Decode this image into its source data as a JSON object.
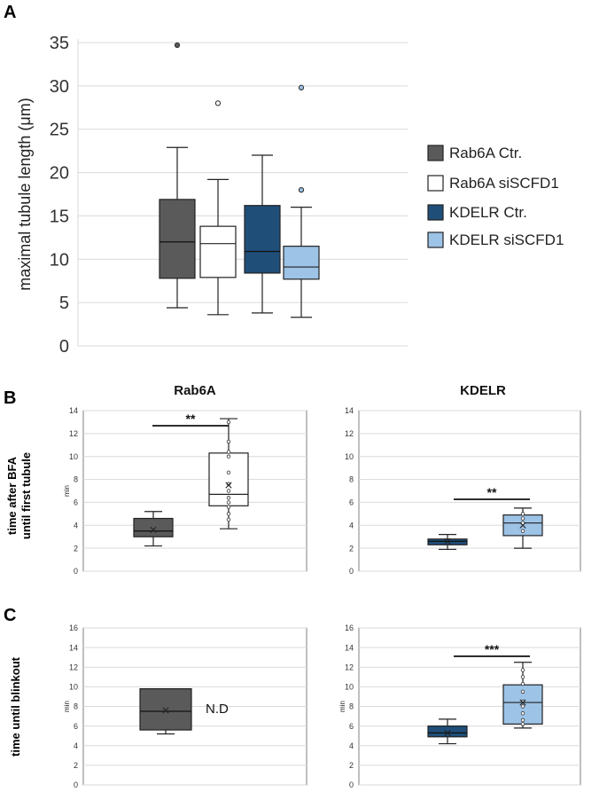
{
  "panel_labels": {
    "a": "A",
    "b": "B",
    "c": "C"
  },
  "colors": {
    "rab6a_ctr": "#5a5a5a",
    "rab6a_si": "#ffffff",
    "kdelr_ctr": "#1f4e79",
    "kdelr_si": "#9dc3e6",
    "grid": "#d9d9d9",
    "frame": "#7f7f7f",
    "stroke": "#222222"
  },
  "chart_data": [
    {
      "id": "A",
      "type": "box",
      "title": "",
      "ylabel": "maximal tubule length (μm)",
      "xlabel": "",
      "ylim": [
        0,
        35
      ],
      "yticks": [
        0,
        5,
        10,
        15,
        20,
        25,
        30,
        35
      ],
      "grid": true,
      "legend_position": "right",
      "series": [
        {
          "name": "Rab6A Ctr.",
          "color_key": "rab6a_ctr",
          "min": 4.4,
          "q1": 7.8,
          "median": 12.0,
          "q3": 16.9,
          "max": 22.9,
          "outliers": [
            34.7
          ]
        },
        {
          "name": "Rab6A siSCFD1",
          "color_key": "rab6a_si",
          "min": 3.6,
          "q1": 7.9,
          "median": 11.8,
          "q3": 13.8,
          "max": 19.2,
          "outliers": [
            28.0
          ]
        },
        {
          "name": "KDELR Ctr.",
          "color_key": "kdelr_ctr",
          "min": 3.8,
          "q1": 8.4,
          "median": 10.9,
          "q3": 16.2,
          "max": 22.0,
          "outliers": []
        },
        {
          "name": "KDELR siSCFD1",
          "color_key": "kdelr_si",
          "min": 3.3,
          "q1": 7.7,
          "median": 9.1,
          "q3": 11.5,
          "max": 16.0,
          "outliers": [
            18.0,
            29.8
          ]
        }
      ]
    },
    {
      "id": "B1",
      "type": "box",
      "title": "Rab6A",
      "ylabel": "min",
      "ylim": [
        0,
        14
      ],
      "yticks": [
        0,
        2,
        4,
        6,
        8,
        10,
        12,
        14
      ],
      "grid": true,
      "significance": "**",
      "series": [
        {
          "name": "Rab6A Ctr.",
          "color_key": "rab6a_ctr",
          "min": 2.2,
          "q1": 3.0,
          "median": 3.5,
          "q3": 4.6,
          "max": 5.2,
          "mean": 3.6,
          "points": []
        },
        {
          "name": "Rab6A siSCFD1",
          "color_key": "rab6a_si",
          "min": 3.7,
          "q1": 5.7,
          "median": 6.7,
          "q3": 10.3,
          "max": 13.3,
          "mean": 7.5,
          "points": [
            4.5,
            5.0,
            5.6,
            6.0,
            6.4,
            7.0,
            7.6,
            8.6,
            10.0,
            10.4,
            11.3,
            13.0
          ]
        }
      ]
    },
    {
      "id": "B2",
      "type": "box",
      "title": "KDELR",
      "ylabel": "",
      "ylim": [
        0,
        14
      ],
      "yticks": [
        0,
        2,
        4,
        6,
        8,
        10,
        12,
        14
      ],
      "grid": true,
      "significance": "**",
      "series": [
        {
          "name": "KDELR Ctr.",
          "color_key": "kdelr_ctr",
          "min": 1.9,
          "q1": 2.3,
          "median": 2.6,
          "q3": 2.8,
          "max": 3.2,
          "mean": 2.6,
          "points": []
        },
        {
          "name": "KDELR siSCFD1",
          "color_key": "kdelr_si",
          "min": 2.0,
          "q1": 3.1,
          "median": 4.2,
          "q3": 4.9,
          "max": 5.5,
          "mean": 4.0,
          "points": [
            3.5,
            4.2,
            4.6,
            5.0
          ]
        }
      ]
    },
    {
      "id": "C1",
      "type": "box",
      "title": "",
      "ylabel": "min",
      "ylim": [
        0,
        16
      ],
      "yticks": [
        0,
        2,
        4,
        6,
        8,
        10,
        12,
        14,
        16
      ],
      "grid": true,
      "annotation": "N.D",
      "series": [
        {
          "name": "Rab6A Ctr.",
          "color_key": "rab6a_ctr",
          "min": 5.2,
          "q1": 5.6,
          "median": 7.5,
          "q3": 9.8,
          "max": 9.8,
          "mean": 7.6,
          "points": []
        }
      ]
    },
    {
      "id": "C2",
      "type": "box",
      "title": "",
      "ylabel": "min",
      "ylim": [
        0,
        16
      ],
      "yticks": [
        0,
        2,
        4,
        6,
        8,
        10,
        12,
        14,
        16
      ],
      "grid": true,
      "significance": "***",
      "series": [
        {
          "name": "KDELR Ctr.",
          "color_key": "kdelr_ctr",
          "min": 4.2,
          "q1": 4.9,
          "median": 5.3,
          "q3": 6.0,
          "max": 6.7,
          "mean": 5.3,
          "points": []
        },
        {
          "name": "KDELR siSCFD1",
          "color_key": "kdelr_si",
          "min": 5.8,
          "q1": 6.2,
          "median": 8.4,
          "q3": 10.2,
          "max": 12.5,
          "mean": 8.4,
          "points": [
            6.2,
            6.6,
            7.3,
            8.0,
            8.5,
            9.5,
            10.3,
            11.0,
            11.7
          ]
        }
      ]
    }
  ],
  "row_labels": {
    "b": "time after BFA until first tubule",
    "b_line1": "time after BFA",
    "b_line2": "until first tubule",
    "c": "time until blinkout"
  }
}
